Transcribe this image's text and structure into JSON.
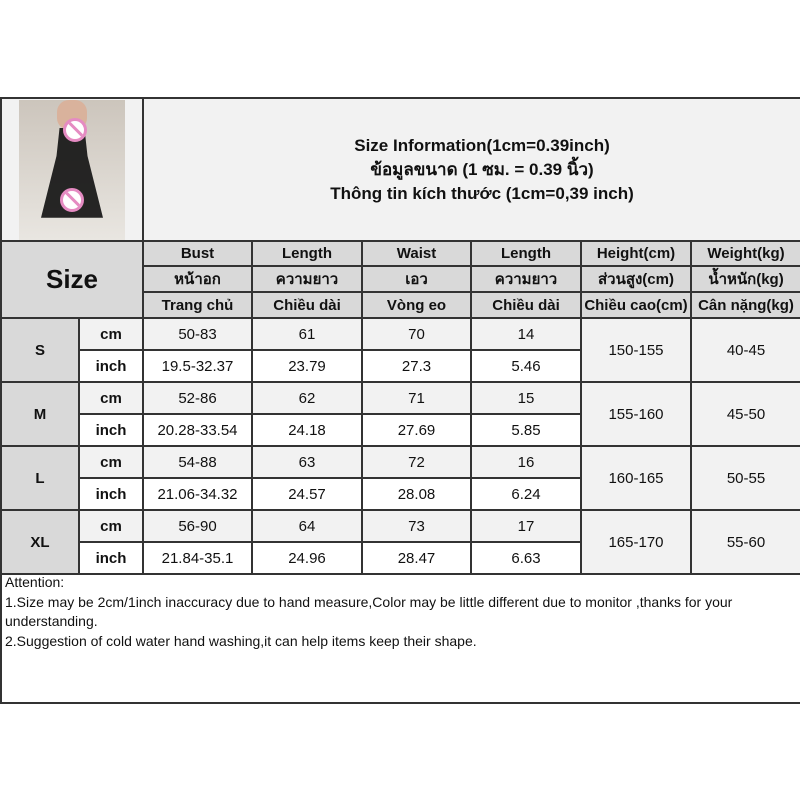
{
  "title_lines": [
    "Size Information(1cm=0.39inch)",
    "ข้อมูลขนาด (1 ซม. = 0.39 นิ้ว)",
    "Thông tin kích thước (1cm=0,39 inch)"
  ],
  "size_label": "Size",
  "headers": [
    [
      "Bust",
      "หน้าอก",
      "Trang chủ"
    ],
    [
      "Length",
      "ความยาว",
      "Chiều dài"
    ],
    [
      "Waist",
      "เอว",
      "Vòng eo"
    ],
    [
      "Length",
      "ความยาว",
      "Chiều dài"
    ],
    [
      "Height(cm)",
      "ส่วนสูง(cm)",
      "Chiều cao(cm)"
    ],
    [
      "Weight(kg)",
      "น้ำหนัก(kg)",
      "Cân nặng(kg)"
    ]
  ],
  "units": {
    "cm": "cm",
    "inch": "inch"
  },
  "rows": [
    {
      "size": "S",
      "cm": [
        "50-83",
        "61",
        "70",
        "14"
      ],
      "inch": [
        "19.5-32.37",
        "23.79",
        "27.3",
        "5.46"
      ],
      "height": "150-155",
      "weight": "40-45"
    },
    {
      "size": "M",
      "cm": [
        "52-86",
        "62",
        "71",
        "15"
      ],
      "inch": [
        "20.28-33.54",
        "24.18",
        "27.69",
        "5.85"
      ],
      "height": "155-160",
      "weight": "45-50"
    },
    {
      "size": "L",
      "cm": [
        "54-88",
        "63",
        "72",
        "16"
      ],
      "inch": [
        "21.06-34.32",
        "24.57",
        "28.08",
        "6.24"
      ],
      "height": "160-165",
      "weight": "50-55"
    },
    {
      "size": "XL",
      "cm": [
        "56-90",
        "64",
        "73",
        "17"
      ],
      "inch": [
        "21.84-35.1",
        "24.96",
        "28.47",
        "6.63"
      ],
      "height": "165-170",
      "weight": "55-60"
    }
  ],
  "attention": [
    "Attention:",
    "1.Size may be 2cm/1inch inaccuracy due to hand measure,Color may be little different due to monitor ,thanks for your understanding.",
    "2.Suggestion of cold water hand washing,it can help items keep their shape."
  ]
}
